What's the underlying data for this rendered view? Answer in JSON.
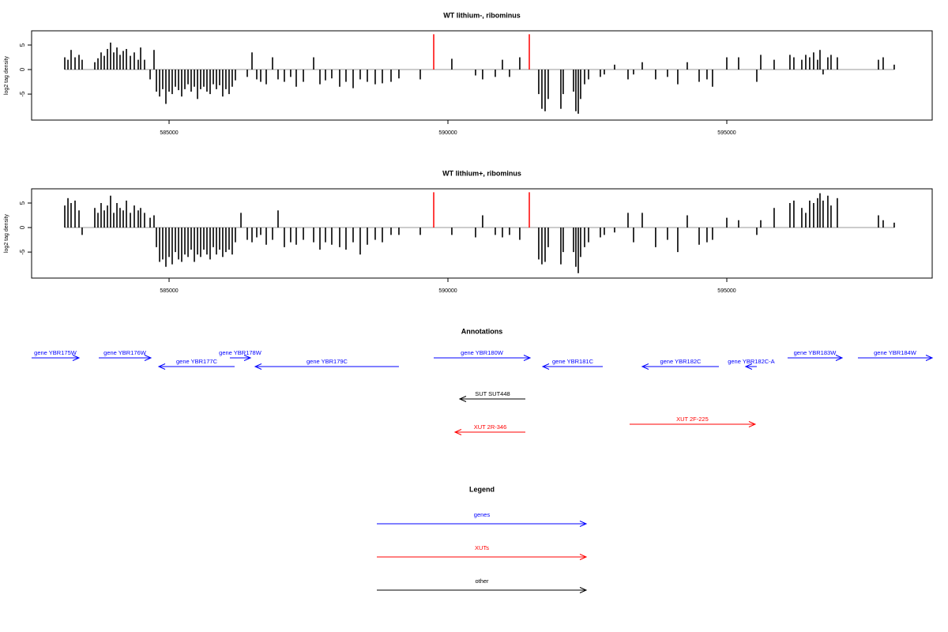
{
  "chart_data": [
    {
      "type": "bar",
      "title": "WT lithium-, ribominus",
      "ylabel": "log2 tag density",
      "xlim": [
        582535,
        598683
      ],
      "ylim": [
        -10.3,
        7.9
      ],
      "xticks": [
        585000,
        590000,
        595000
      ],
      "yticks": [
        -5,
        0,
        5
      ],
      "color": "#000000",
      "baseline_color": "#999999",
      "x": [
        583130,
        583187,
        583243,
        583314,
        583385,
        583441,
        583668,
        583725,
        583781,
        583838,
        583895,
        583951,
        584008,
        584065,
        584121,
        584178,
        584235,
        584306,
        584376,
        584447,
        584490,
        584560,
        584660,
        584730,
        584773,
        584830,
        584886,
        584943,
        585000,
        585056,
        585113,
        585170,
        585226,
        585283,
        585340,
        585396,
        585453,
        585510,
        585566,
        585623,
        585679,
        585736,
        585793,
        585849,
        585906,
        585962,
        586019,
        586076,
        586132,
        586189,
        586402,
        586487,
        586572,
        586643,
        586742,
        586855,
        586954,
        587067,
        587180,
        587280,
        587408,
        587592,
        587705,
        587804,
        587917,
        588059,
        588172,
        588300,
        588427,
        588555,
        588696,
        588824,
        588980,
        589121,
        589504,
        590070,
        590495,
        590622,
        590849,
        590977,
        591104,
        591288,
        591628,
        591685,
        591742,
        591798,
        592025,
        592067,
        592252,
        592294,
        592337,
        592379,
        592450,
        592521,
        592733,
        592804,
        592988,
        593229,
        593328,
        593484,
        593724,
        593937,
        594121,
        594291,
        594504,
        594645,
        594744,
        595000,
        595212,
        595538,
        595609,
        595849,
        596132,
        596203,
        596345,
        596416,
        596486,
        596557,
        596628,
        596671,
        596727,
        596812,
        596869,
        596982,
        597719,
        597804,
        598002
      ],
      "values": [
        2.5,
        2,
        4,
        2.5,
        3,
        2,
        1.5,
        2.3,
        3.5,
        2.8,
        4.2,
        5.5,
        3.5,
        4.5,
        3,
        3.8,
        4.2,
        2.8,
        3.5,
        2,
        4.5,
        2,
        -2,
        4,
        -4.5,
        -5.5,
        -4,
        -7,
        -4.5,
        -5,
        -3.5,
        -4.2,
        -5.5,
        -4,
        -3,
        -4.5,
        -3.5,
        -6,
        -4,
        -3.5,
        -4.5,
        -5,
        -3,
        -4,
        -3.2,
        -5.5,
        -4,
        -5,
        -3.5,
        -2.2,
        -1.5,
        3.5,
        -2,
        -2.5,
        -3,
        2.5,
        -2,
        -2.5,
        -1.5,
        -3.5,
        -2.5,
        2.5,
        -3,
        -2.2,
        -1.8,
        -3.5,
        -2.5,
        -3.8,
        -2,
        -2.5,
        -3,
        -2.8,
        -2.5,
        -1.8,
        -2,
        2.2,
        -1.2,
        -2,
        -1.5,
        2,
        -1.5,
        2.5,
        -5,
        -8,
        -8.5,
        -6,
        -8,
        -5,
        -4.5,
        -8.5,
        -9,
        -6,
        -3,
        -2,
        -1.5,
        -1,
        1,
        -2,
        -1,
        1.5,
        -2,
        -1.5,
        -3,
        1.5,
        -2.5,
        -2,
        -3.5,
        2.5,
        2.5,
        -2.5,
        3,
        2,
        3,
        2.5,
        2,
        3,
        2.5,
        3.5,
        2,
        4,
        -1,
        2.5,
        3,
        2.5,
        2,
        2.5,
        1
      ],
      "markers": {
        "color": "#ff0000",
        "x": [
          589745,
          591459
        ],
        "values": [
          7.2,
          7.2
        ]
      }
    },
    {
      "type": "bar",
      "title": "WT lithium+, ribominus",
      "ylabel": "log2 tag density",
      "xlim": [
        582535,
        598683
      ],
      "ylim": [
        -10.3,
        7.9
      ],
      "xticks": [
        585000,
        590000,
        595000
      ],
      "yticks": [
        -5,
        0,
        5
      ],
      "color": "#000000",
      "baseline_color": "#999999",
      "x": [
        583130,
        583187,
        583243,
        583314,
        583385,
        583441,
        583668,
        583725,
        583781,
        583838,
        583895,
        583951,
        584008,
        584065,
        584121,
        584178,
        584235,
        584306,
        584376,
        584447,
        584490,
        584560,
        584660,
        584730,
        584773,
        584830,
        584886,
        584943,
        585000,
        585056,
        585113,
        585170,
        585226,
        585283,
        585340,
        585396,
        585453,
        585510,
        585566,
        585623,
        585679,
        585736,
        585793,
        585849,
        585906,
        585962,
        586019,
        586076,
        586132,
        586189,
        586289,
        586402,
        586487,
        586572,
        586643,
        586742,
        586855,
        586954,
        587067,
        587180,
        587280,
        587408,
        587592,
        587705,
        587804,
        587917,
        588059,
        588172,
        588300,
        588427,
        588555,
        588696,
        588824,
        588980,
        589121,
        589504,
        590070,
        590495,
        590622,
        590849,
        590977,
        591104,
        591288,
        591628,
        591685,
        591742,
        591798,
        592025,
        592067,
        592252,
        592294,
        592337,
        592379,
        592450,
        592521,
        592733,
        592804,
        592988,
        593229,
        593328,
        593484,
        593724,
        593937,
        594121,
        594291,
        594504,
        594645,
        594744,
        595000,
        595212,
        595538,
        595609,
        595849,
        596132,
        596203,
        596345,
        596416,
        596486,
        596557,
        596628,
        596671,
        596727,
        596812,
        596869,
        596982,
        597719,
        597804,
        598002
      ],
      "values": [
        4.5,
        6,
        5,
        5.5,
        3.5,
        -1.5,
        4,
        3,
        5,
        3.5,
        4.5,
        6.5,
        3,
        5,
        4,
        3.5,
        5.5,
        3,
        4.5,
        3.5,
        4,
        3,
        2,
        2.5,
        -4,
        -7,
        -6.5,
        -8,
        -6,
        -7.5,
        -5,
        -6.5,
        -7,
        -5.5,
        -6,
        -4.5,
        -7,
        -5.5,
        -6,
        -4.5,
        -5.5,
        -6.5,
        -4,
        -5.5,
        -4.5,
        -6,
        -5,
        -4.5,
        -5.5,
        -3,
        3,
        -2.5,
        -3,
        -2,
        -1.5,
        -3.5,
        -2.5,
        3.5,
        -4,
        -3,
        -3.5,
        -2.5,
        -3,
        -4.5,
        -3,
        -3.5,
        -4,
        -4.5,
        -3,
        -5.5,
        -3.5,
        -2.5,
        -3,
        -1.5,
        -1.5,
        -1.5,
        -1.5,
        -2,
        2.5,
        -1.5,
        -2,
        -1.5,
        -2.5,
        -6.5,
        -7.5,
        -7,
        -4,
        -7.5,
        -5,
        -5,
        -8,
        -9.3,
        -6,
        -4,
        -3,
        -2,
        -1.5,
        -1,
        3,
        -3,
        3,
        -4,
        -2.5,
        -5,
        2.5,
        -3.5,
        -3,
        -2.5,
        2,
        1.5,
        -1.5,
        1.5,
        4,
        5,
        5.5,
        4,
        3,
        5.5,
        5,
        6,
        7,
        5.5,
        6.5,
        4.5,
        6,
        2.5,
        1.5,
        1
      ],
      "markers": {
        "color": "#ff0000",
        "x": [
          589745,
          591459
        ],
        "values": [
          7.2,
          7.2
        ]
      }
    },
    {
      "type": "annotation",
      "title": "Annotations",
      "xlim": [
        582535,
        598683
      ],
      "features": [
        {
          "label": "gene YBR175W",
          "start": 582535,
          "end": 583385,
          "color": "#0000ff"
        },
        {
          "label": "gene YBR176W",
          "start": 583739,
          "end": 584674,
          "color": "#0000ff"
        },
        {
          "label": "gene YBR177C",
          "start": 586175,
          "end": 584816,
          "color": "#0000ff"
        },
        {
          "label": "gene YBR178W",
          "start": 586090,
          "end": 586459,
          "color": "#0000ff"
        },
        {
          "label": "gene YBR179C",
          "start": 589121,
          "end": 586544,
          "color": "#0000ff"
        },
        {
          "label": "gene YBR180W",
          "start": 589745,
          "end": 591473,
          "color": "#0000ff"
        },
        {
          "label": "gene YBR181C",
          "start": 592776,
          "end": 591700,
          "color": "#0000ff"
        },
        {
          "label": "gene YBR182C",
          "start": 594858,
          "end": 593484,
          "color": "#0000ff"
        },
        {
          "label": "gene YBR182C-A",
          "start": 595538,
          "end": 595339,
          "color": "#0000ff"
        },
        {
          "label": "gene YBR183W",
          "start": 596090,
          "end": 597068,
          "color": "#0000ff"
        },
        {
          "label": "gene YBR184W",
          "start": 597351,
          "end": 598683,
          "color": "#0000ff"
        },
        {
          "label": "SUT SUT448",
          "start": 591388,
          "end": 590212,
          "color": "#000000"
        },
        {
          "label": "XUT 2R-346",
          "start": 591388,
          "end": 590127,
          "color": "#ff0000"
        },
        {
          "label": "XUT 2F-225",
          "start": 593257,
          "end": 595509,
          "color": "#ff0000"
        }
      ]
    },
    {
      "type": "legend",
      "title": "Legend",
      "entries": [
        {
          "name": "genes",
          "color": "#0000ff"
        },
        {
          "name": "XUTs",
          "color": "#ff0000"
        },
        {
          "name": "other",
          "color": "#000000"
        }
      ]
    }
  ]
}
